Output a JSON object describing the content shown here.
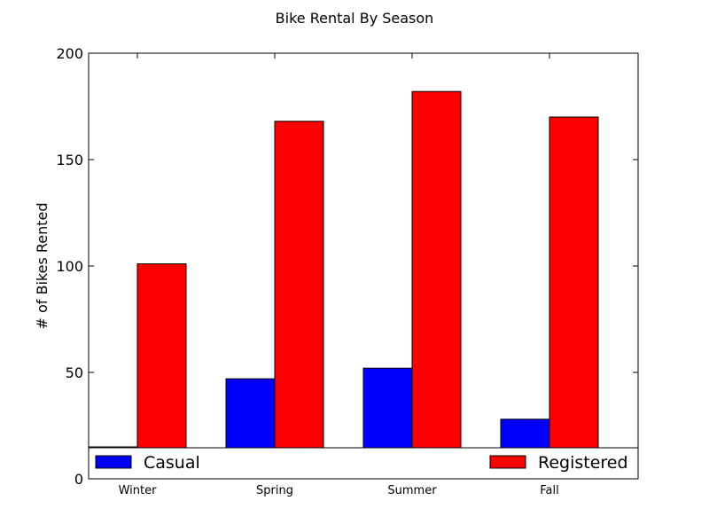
{
  "chart_data": {
    "type": "bar",
    "title": "Bike Rental By Season",
    "xlabel": "",
    "ylabel": "# of Bikes Rented",
    "categories": [
      "Winter",
      "Spring",
      "Summer",
      "Fall"
    ],
    "series": [
      {
        "name": "Casual",
        "color": "#0000ff",
        "values": [
          15,
          47,
          52,
          28
        ]
      },
      {
        "name": "Registered",
        "color": "#ff0000",
        "values": [
          101,
          168,
          182,
          170
        ]
      }
    ],
    "ylim": [
      0,
      200
    ],
    "yticks": [
      "0",
      "50",
      "100",
      "150",
      "200"
    ],
    "grid": false,
    "legend": {
      "placement": "bottom",
      "entries": [
        "Casual",
        "Registered"
      ]
    }
  }
}
